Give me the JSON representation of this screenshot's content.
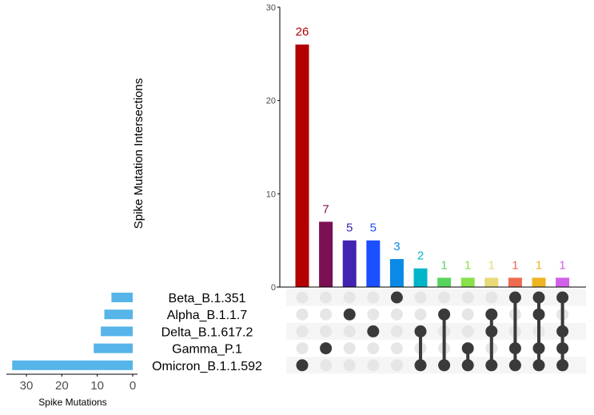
{
  "chart_data": {
    "type": "bar",
    "subtype": "upset",
    "ylabel": "Spike Mutation Intersections",
    "ylim": [
      0,
      30
    ],
    "yticks": [
      0,
      10,
      20,
      30
    ],
    "sets": [
      "Beta_B.1.351",
      "Alpha_B.1.1.7",
      "Delta_B.1.617.2",
      "Gamma_P.1",
      "Omicron_B.1.1.592"
    ],
    "set_sizes": [
      6,
      8,
      9,
      11,
      34
    ],
    "set_size_xlabel": "Spike Mutations",
    "set_size_ticks": [
      30,
      20,
      10,
      0
    ],
    "set_size_color": "#56B4E9",
    "intersections": [
      {
        "value": 26,
        "members": [
          "Omicron_B.1.1.592"
        ],
        "color": "#B30000"
      },
      {
        "value": 7,
        "members": [
          "Gamma_P.1"
        ],
        "color": "#7B1052"
      },
      {
        "value": 5,
        "members": [
          "Alpha_B.1.1.7"
        ],
        "color": "#4222B0"
      },
      {
        "value": 5,
        "members": [
          "Delta_B.1.617.2"
        ],
        "color": "#1A50FF"
      },
      {
        "value": 3,
        "members": [
          "Beta_B.1.351"
        ],
        "color": "#0A8AE6"
      },
      {
        "value": 2,
        "members": [
          "Delta_B.1.617.2",
          "Omicron_B.1.1.592"
        ],
        "color": "#00B5C8"
      },
      {
        "value": 1,
        "members": [
          "Alpha_B.1.1.7",
          "Omicron_B.1.1.592"
        ],
        "color": "#58D45C"
      },
      {
        "value": 1,
        "members": [
          "Gamma_P.1",
          "Omicron_B.1.1.592"
        ],
        "color": "#88E04A"
      },
      {
        "value": 1,
        "members": [
          "Alpha_B.1.1.7",
          "Delta_B.1.617.2",
          "Omicron_B.1.1.592"
        ],
        "color": "#E8DA78"
      },
      {
        "value": 1,
        "members": [
          "Beta_B.1.351",
          "Gamma_P.1",
          "Omicron_B.1.1.592"
        ],
        "color": "#EE6A50"
      },
      {
        "value": 1,
        "members": [
          "Beta_B.1.351",
          "Alpha_B.1.1.7",
          "Gamma_P.1",
          "Omicron_B.1.1.592"
        ],
        "color": "#EEB422"
      },
      {
        "value": 1,
        "members": [
          "Beta_B.1.351",
          "Delta_B.1.617.2",
          "Gamma_P.1",
          "Omicron_B.1.1.592"
        ],
        "color": "#D060E8"
      }
    ],
    "dot_on_color": "#3A3A3A",
    "dot_off_color": "#E6E6E6",
    "grid": false
  }
}
